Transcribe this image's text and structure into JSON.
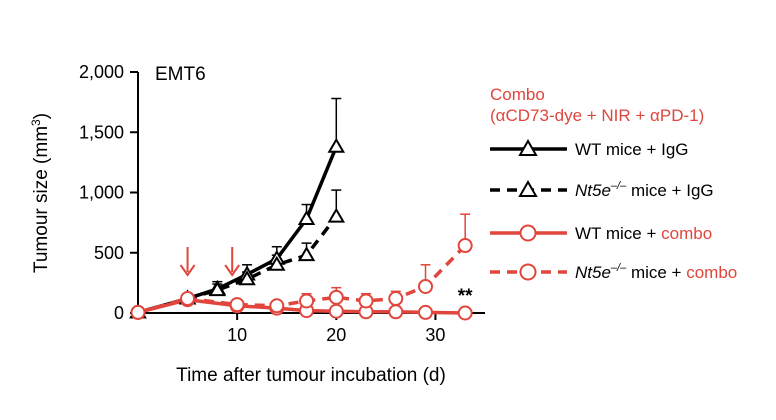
{
  "chart_data": {
    "type": "line",
    "title": "EMT6",
    "xlabel": "Time after tumour incubation (d)",
    "ylabel": "Tumour size (mm",
    "ylabel_sup": "3",
    "ylabel_close": ")",
    "xlim": [
      0,
      35
    ],
    "ylim": [
      0,
      2000
    ],
    "x_ticks": [
      10,
      20,
      30
    ],
    "y_ticks": [
      0,
      500,
      1000,
      1500,
      2000
    ],
    "y_tick_labels": [
      "0",
      "500",
      "1,000",
      "1,500",
      "2,000"
    ],
    "legend_title_line1": "Combo",
    "legend_title_line2": "(αCD73-dye + NIR + αPD-1)",
    "legend_title_color": "#e0463d",
    "treatment_arrows_x": [
      5,
      9.5
    ],
    "significance_label": "**",
    "significance_x": 33,
    "series": [
      {
        "legend_prefix": "WT mice + ",
        "legend_suffix": "IgG",
        "legend_italic": "",
        "italic_part": "",
        "color": "#000000",
        "suffix_color": "#000000",
        "dashed": false,
        "marker": "triangle",
        "x": [
          0,
          5,
          8,
          11,
          14,
          17,
          20
        ],
        "y": [
          5,
          120,
          200,
          320,
          450,
          780,
          1380
        ],
        "err": [
          20,
          40,
          60,
          80,
          100,
          120,
          400
        ]
      },
      {
        "legend_prefix": " mice + ",
        "legend_suffix": "IgG",
        "legend_italic": "Nt5e",
        "italic_sup": "–/–",
        "color": "#000000",
        "suffix_color": "#000000",
        "dashed": true,
        "marker": "triangle",
        "x": [
          0,
          5,
          8,
          11,
          14,
          17,
          20
        ],
        "y": [
          5,
          120,
          190,
          280,
          400,
          480,
          800
        ],
        "err": [
          20,
          40,
          50,
          60,
          80,
          100,
          220
        ]
      },
      {
        "legend_prefix": "WT mice + ",
        "legend_suffix": "combo",
        "legend_italic": "",
        "italic_part": "",
        "color": "#e0463d",
        "suffix_color": "#e0463d",
        "dashed": false,
        "marker": "circle",
        "x": [
          0,
          5,
          10,
          14,
          17,
          20,
          23,
          26,
          29,
          33
        ],
        "y": [
          5,
          110,
          60,
          40,
          20,
          15,
          10,
          10,
          5,
          0
        ],
        "err": [
          10,
          30,
          20,
          20,
          15,
          10,
          10,
          10,
          5,
          5
        ]
      },
      {
        "legend_prefix": " mice + ",
        "legend_suffix": "combo",
        "legend_italic": "Nt5e",
        "italic_sup": "–/–",
        "color": "#e0463d",
        "suffix_color": "#e0463d",
        "dashed": true,
        "marker": "circle",
        "x": [
          0,
          5,
          10,
          14,
          17,
          20,
          23,
          26,
          29,
          33
        ],
        "y": [
          5,
          120,
          70,
          60,
          100,
          130,
          100,
          120,
          220,
          560
        ],
        "err": [
          10,
          40,
          30,
          30,
          60,
          80,
          60,
          60,
          180,
          260
        ]
      }
    ]
  }
}
